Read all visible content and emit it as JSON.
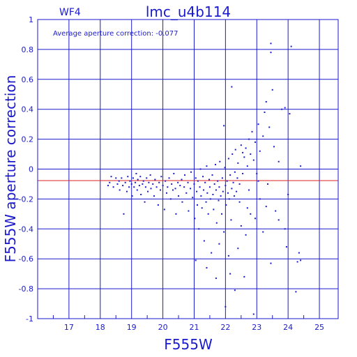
{
  "chart_data": {
    "type": "scatter",
    "title": "lmc_u4b114",
    "chip_label": "WF4",
    "annotation": "Average aperture correction: -0.077",
    "xlabel": "F555W",
    "ylabel": "F555W aperture correction",
    "xlim": [
      16,
      25.6
    ],
    "ylim": [
      -1,
      1
    ],
    "x_ticks": [
      "17",
      "18",
      "19",
      "20",
      "21",
      "22",
      "23",
      "24",
      "25"
    ],
    "y_ticks": [
      "-1",
      "-0.8",
      "-0.6",
      "-0.4",
      "-0.2",
      "0",
      "0.2",
      "0.4",
      "0.6",
      "0.8",
      "1"
    ],
    "grid": true,
    "reference_line": {
      "y": -0.077
    },
    "colors": {
      "axes": "#1a1acc",
      "points": "#1a1acc",
      "reference_line": "#dd2222"
    },
    "series": [
      {
        "points": [
          [
            18.25,
            -0.11
          ],
          [
            18.3,
            -0.09
          ],
          [
            18.35,
            -0.05
          ],
          [
            18.42,
            -0.12
          ],
          [
            18.5,
            -0.06
          ],
          [
            18.55,
            -0.1
          ],
          [
            18.6,
            -0.08
          ],
          [
            18.62,
            -0.14
          ],
          [
            18.68,
            -0.06
          ],
          [
            18.72,
            -0.11
          ],
          [
            18.75,
            -0.3
          ],
          [
            18.8,
            -0.09
          ],
          [
            18.85,
            -0.15
          ],
          [
            18.88,
            -0.05
          ],
          [
            18.92,
            -0.12
          ],
          [
            18.95,
            -0.08
          ],
          [
            19.0,
            -0.1
          ],
          [
            19.02,
            -0.18
          ],
          [
            19.05,
            -0.06
          ],
          [
            19.08,
            -0.12
          ],
          [
            19.12,
            -0.09
          ],
          [
            19.15,
            -0.03
          ],
          [
            19.18,
            -0.14
          ],
          [
            19.2,
            -0.07
          ],
          [
            19.25,
            -0.11
          ],
          [
            19.28,
            -0.05
          ],
          [
            19.3,
            -0.17
          ],
          [
            19.35,
            -0.1
          ],
          [
            19.38,
            -0.08
          ],
          [
            19.42,
            -0.22
          ],
          [
            19.45,
            -0.12
          ],
          [
            19.48,
            -0.06
          ],
          [
            19.52,
            -0.15
          ],
          [
            19.55,
            -0.09
          ],
          [
            19.6,
            -0.04
          ],
          [
            19.62,
            -0.13
          ],
          [
            19.68,
            -0.1
          ],
          [
            19.72,
            -0.18
          ],
          [
            19.75,
            -0.07
          ],
          [
            19.8,
            -0.12
          ],
          [
            19.85,
            -0.24
          ],
          [
            19.88,
            -0.09
          ],
          [
            19.92,
            -0.14
          ],
          [
            19.95,
            -0.05
          ],
          [
            20.0,
            -0.11
          ],
          [
            20.05,
            -0.27
          ],
          [
            20.08,
            -0.08
          ],
          [
            20.12,
            -0.16
          ],
          [
            20.15,
            -0.12
          ],
          [
            20.2,
            -0.06
          ],
          [
            20.25,
            -0.2
          ],
          [
            20.28,
            -0.1
          ],
          [
            20.32,
            -0.14
          ],
          [
            20.35,
            -0.03
          ],
          [
            20.4,
            -0.13
          ],
          [
            20.42,
            -0.3
          ],
          [
            20.48,
            -0.09
          ],
          [
            20.5,
            -0.18
          ],
          [
            20.55,
            -0.11
          ],
          [
            20.6,
            -0.07
          ],
          [
            20.62,
            -0.22
          ],
          [
            20.68,
            -0.12
          ],
          [
            20.7,
            -0.04
          ],
          [
            20.75,
            -0.16
          ],
          [
            20.8,
            -0.09
          ],
          [
            20.82,
            -0.28
          ],
          [
            20.88,
            -0.13
          ],
          [
            20.9,
            -0.02
          ],
          [
            20.95,
            -0.19
          ],
          [
            21.0,
            -0.1
          ],
          [
            21.02,
            -0.33
          ],
          [
            21.05,
            -0.06
          ],
          [
            21.08,
            -0.15
          ],
          [
            21.1,
            -0.24
          ],
          [
            21.12,
            -0.08
          ],
          [
            21.15,
            -0.4
          ],
          [
            21.18,
            -0.12
          ],
          [
            21.2,
            0.0
          ],
          [
            21.22,
            -0.18
          ],
          [
            21.25,
            -0.26
          ],
          [
            21.28,
            -0.05
          ],
          [
            21.3,
            -0.14
          ],
          [
            21.32,
            -0.48
          ],
          [
            21.35,
            -0.09
          ],
          [
            21.38,
            -0.22
          ],
          [
            21.4,
            0.02
          ],
          [
            21.42,
            -0.16
          ],
          [
            21.45,
            -0.3
          ],
          [
            21.48,
            -0.07
          ],
          [
            21.5,
            -0.12
          ],
          [
            21.52,
            -0.2
          ],
          [
            21.55,
            -0.56
          ],
          [
            21.58,
            -0.04
          ],
          [
            21.6,
            -0.17
          ],
          [
            21.62,
            -0.27
          ],
          [
            21.65,
            -0.1
          ],
          [
            21.68,
            0.03
          ],
          [
            21.7,
            -0.14
          ],
          [
            21.72,
            -0.36
          ],
          [
            21.75,
            -0.08
          ],
          [
            21.78,
            -0.21
          ],
          [
            21.8,
            -0.12
          ],
          [
            21.82,
            0.05
          ],
          [
            21.85,
            -0.18
          ],
          [
            21.88,
            -0.3
          ],
          [
            21.9,
            -0.06
          ],
          [
            21.92,
            -0.15
          ],
          [
            21.95,
            -0.42
          ],
          [
            21.98,
            0.01
          ],
          [
            22.0,
            -0.11
          ],
          [
            22.02,
            -0.24
          ],
          [
            22.05,
            -0.08
          ],
          [
            22.08,
            -0.16
          ],
          [
            22.1,
            0.07
          ],
          [
            22.12,
            -0.2
          ],
          [
            22.15,
            -0.04
          ],
          [
            22.18,
            -0.34
          ],
          [
            22.2,
            -0.13
          ],
          [
            22.22,
            0.1
          ],
          [
            22.25,
            -0.09
          ],
          [
            22.28,
            -0.18
          ],
          [
            22.3,
            -0.02
          ],
          [
            22.32,
            0.13
          ],
          [
            22.35,
            -0.15
          ],
          [
            22.38,
            -0.06
          ],
          [
            22.4,
            0.04
          ],
          [
            22.45,
            -0.1
          ],
          [
            22.5,
            0.16
          ],
          [
            22.55,
            -0.03
          ],
          [
            22.6,
            0.08
          ],
          [
            22.65,
            0.14
          ],
          [
            22.7,
            0.02
          ],
          [
            22.75,
            0.2
          ],
          [
            22.8,
            0.1
          ],
          [
            22.85,
            0.25
          ],
          [
            22.9,
            0.06
          ],
          [
            22.95,
            0.18
          ],
          [
            23.0,
            -0.03
          ],
          [
            23.05,
            0.3
          ],
          [
            23.1,
            0.12
          ],
          [
            23.2,
            0.22
          ],
          [
            23.25,
            0.38
          ],
          [
            23.3,
            0.45
          ],
          [
            23.35,
            -0.1
          ],
          [
            23.4,
            0.28
          ],
          [
            23.5,
            0.53
          ],
          [
            23.55,
            0.15
          ],
          [
            23.6,
            -0.28
          ],
          [
            23.7,
            0.05
          ],
          [
            23.8,
            0.4
          ],
          [
            23.9,
            -0.4
          ],
          [
            23.45,
            0.78
          ],
          [
            23.45,
            0.84
          ],
          [
            24.1,
            0.82
          ],
          [
            24.05,
            0.37
          ],
          [
            23.9,
            0.41
          ],
          [
            24.4,
            0.02
          ],
          [
            22.2,
            0.55
          ],
          [
            21.95,
            0.29
          ],
          [
            22.0,
            -0.92
          ],
          [
            22.3,
            -0.81
          ],
          [
            22.9,
            -0.97
          ],
          [
            23.45,
            -0.63
          ],
          [
            24.25,
            -0.82
          ],
          [
            24.3,
            -0.62
          ],
          [
            24.4,
            -0.61
          ],
          [
            24.35,
            -0.56
          ],
          [
            23.95,
            -0.52
          ],
          [
            21.05,
            -0.61
          ],
          [
            22.15,
            -0.7
          ],
          [
            22.6,
            -0.72
          ],
          [
            22.8,
            -0.3
          ],
          [
            22.65,
            -0.44
          ],
          [
            22.4,
            -0.53
          ],
          [
            21.8,
            -0.5
          ],
          [
            21.4,
            -0.66
          ],
          [
            21.7,
            -0.73
          ],
          [
            22.1,
            -0.58
          ],
          [
            23.2,
            -0.42
          ],
          [
            22.5,
            -0.38
          ],
          [
            23.1,
            -0.2
          ],
          [
            22.7,
            -0.26
          ],
          [
            22.95,
            -0.33
          ],
          [
            23.3,
            -0.25
          ],
          [
            24.0,
            -0.17
          ],
          [
            23.7,
            -0.34
          ],
          [
            22.75,
            -0.14
          ],
          [
            22.45,
            -0.22
          ],
          [
            23.05,
            -0.08
          ],
          [
            22.55,
            0.11
          ]
        ]
      }
    ]
  }
}
